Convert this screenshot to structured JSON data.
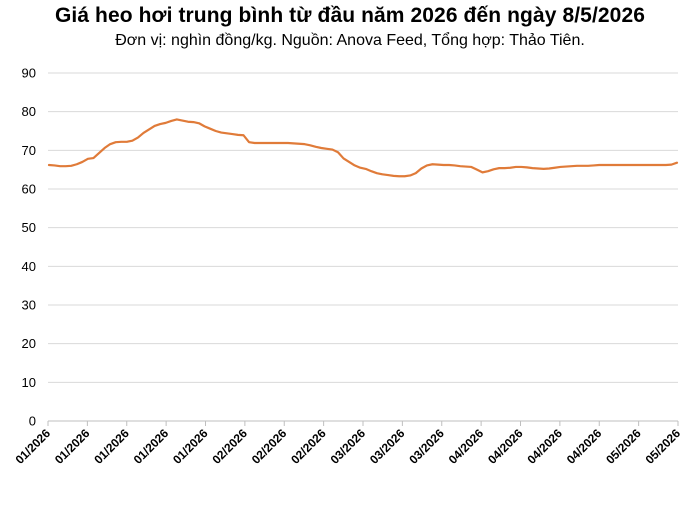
{
  "chart_data": {
    "type": "line",
    "title": "Giá heo hơi trung bình từ đầu năm 2026 đến ngày 8/5/2026",
    "subtitle": "Đơn vị: nghìn đồng/kg. Nguồn: Anova Feed, Tổng hợp: Thảo Tiên.",
    "xlabel": "",
    "ylabel": "",
    "ylim": [
      0,
      90
    ],
    "yticks": [
      0,
      10,
      20,
      30,
      40,
      50,
      60,
      70,
      80,
      90
    ],
    "grid": true,
    "legend": "none",
    "x_tick_labels": [
      "01/2026",
      "01/2026",
      "01/2026",
      "01/2026",
      "01/2026",
      "02/2026",
      "02/2026",
      "02/2026",
      "03/2026",
      "03/2026",
      "03/2026",
      "04/2026",
      "04/2026",
      "04/2026",
      "04/2026",
      "05/2026",
      "05/2026"
    ],
    "colors": {
      "line": "#E07B39",
      "grid": "#D9D9D9",
      "axis": "#BFBFBF"
    },
    "series": [
      {
        "values": [
          66.2,
          66.1,
          65.9,
          65.9,
          66.0,
          66.4,
          67.0,
          67.8,
          68.0,
          69.3,
          70.6,
          71.6,
          72.1,
          72.2,
          72.2,
          72.5,
          73.3,
          74.5,
          75.4,
          76.3,
          76.8,
          77.1,
          77.6,
          78.0,
          77.7,
          77.4,
          77.3,
          77.0,
          76.2,
          75.6,
          75.0,
          74.6,
          74.4,
          74.2,
          74.0,
          73.9,
          72.1,
          71.9,
          71.9,
          71.9,
          71.9,
          71.9,
          71.9,
          71.9,
          71.8,
          71.7,
          71.6,
          71.3,
          70.9,
          70.6,
          70.4,
          70.2,
          69.5,
          67.9,
          67.0,
          66.1,
          65.5,
          65.2,
          64.6,
          64.1,
          63.8,
          63.6,
          63.4,
          63.3,
          63.3,
          63.5,
          64.1,
          65.3,
          66.1,
          66.4,
          66.3,
          66.2,
          66.2,
          66.1,
          65.9,
          65.8,
          65.7,
          65.0,
          64.3,
          64.6,
          65.1,
          65.4,
          65.4,
          65.5,
          65.7,
          65.7,
          65.6,
          65.4,
          65.3,
          65.2,
          65.3,
          65.5,
          65.7,
          65.8,
          65.9,
          66.0,
          66.0,
          66.0,
          66.1,
          66.2,
          66.2,
          66.2,
          66.2,
          66.2,
          66.2,
          66.2,
          66.2,
          66.2,
          66.2,
          66.2,
          66.2,
          66.2,
          66.3,
          66.8
        ]
      }
    ]
  }
}
